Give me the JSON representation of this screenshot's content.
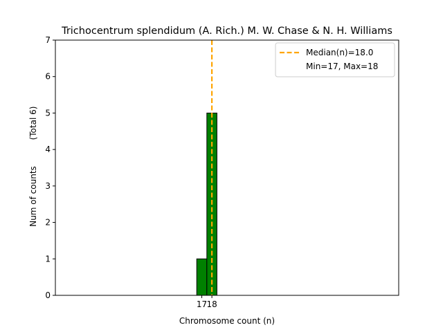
{
  "chart_data": {
    "type": "bar",
    "title": "Trichocentrum splendidum (A. Rich.) M. W. Chase & N. H. Williams",
    "xlabel": "Chromosome count (n)",
    "ylabel": "Num of counts",
    "ylabel_extra": "(Total 6)",
    "categories": [
      17,
      18
    ],
    "values": [
      1,
      5
    ],
    "ylim": [
      0,
      7
    ],
    "xlim": [
      2.5,
      36.5
    ],
    "yticks": [
      0,
      1,
      2,
      3,
      4,
      5,
      6,
      7
    ],
    "xticks": [
      17,
      18
    ],
    "median": 18.0,
    "legend": {
      "position": "top-right",
      "entries": [
        {
          "label": "Median(n)=18.0",
          "style": "dashed-line"
        },
        {
          "label": "Min=17, Max=18",
          "style": "none"
        }
      ]
    },
    "colors": {
      "bar_fill": "#008000",
      "bar_edge": "#000000",
      "median_line": "#ffa500"
    },
    "grid": false
  }
}
